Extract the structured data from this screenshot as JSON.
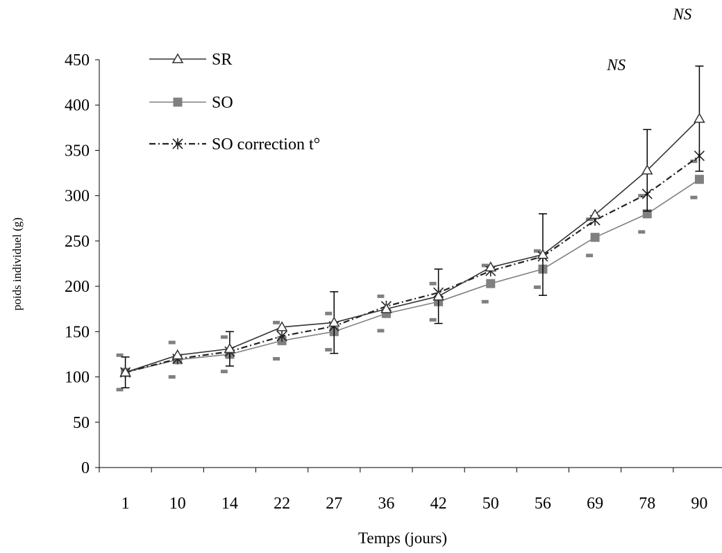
{
  "chart_data": {
    "type": "line",
    "xlabel": "Temps (jours)",
    "ylabel": "poids individuel (g)",
    "ylim": [
      0,
      450
    ],
    "yticks": [
      0,
      50,
      100,
      150,
      200,
      250,
      300,
      350,
      400,
      450
    ],
    "categories": [
      "1",
      "10",
      "14",
      "22",
      "27",
      "36",
      "42",
      "50",
      "56",
      "69",
      "78",
      "90"
    ],
    "grid": false,
    "legend_position": "top-left",
    "series": [
      {
        "name": "SR",
        "color": "#333333",
        "marker": "triangle-open",
        "line_style": "solid",
        "values": [
          105,
          124,
          131,
          155,
          160,
          175,
          189,
          221,
          235,
          279,
          328,
          385
        ],
        "error": [
          17,
          null,
          19,
          null,
          34,
          null,
          30,
          null,
          45,
          null,
          45,
          58
        ]
      },
      {
        "name": "SO",
        "color": "#808080",
        "marker": "square-filled",
        "line_style": "solid",
        "values": [
          105,
          119,
          125,
          140,
          150,
          170,
          183,
          203,
          219,
          254,
          280,
          318
        ],
        "error": [
          19,
          19,
          19,
          20,
          20,
          19,
          20,
          20,
          20,
          20,
          20,
          20
        ]
      },
      {
        "name": "SO correction t°",
        "color": "#222222",
        "marker": "asterisk",
        "line_style": "dash-dot",
        "values": [
          105,
          120,
          128,
          145,
          156,
          178,
          193,
          217,
          233,
          273,
          302,
          344
        ],
        "error": []
      }
    ],
    "annotations": [
      {
        "text": "NS",
        "category": "78"
      },
      {
        "text": "NS",
        "category": "90"
      }
    ]
  }
}
